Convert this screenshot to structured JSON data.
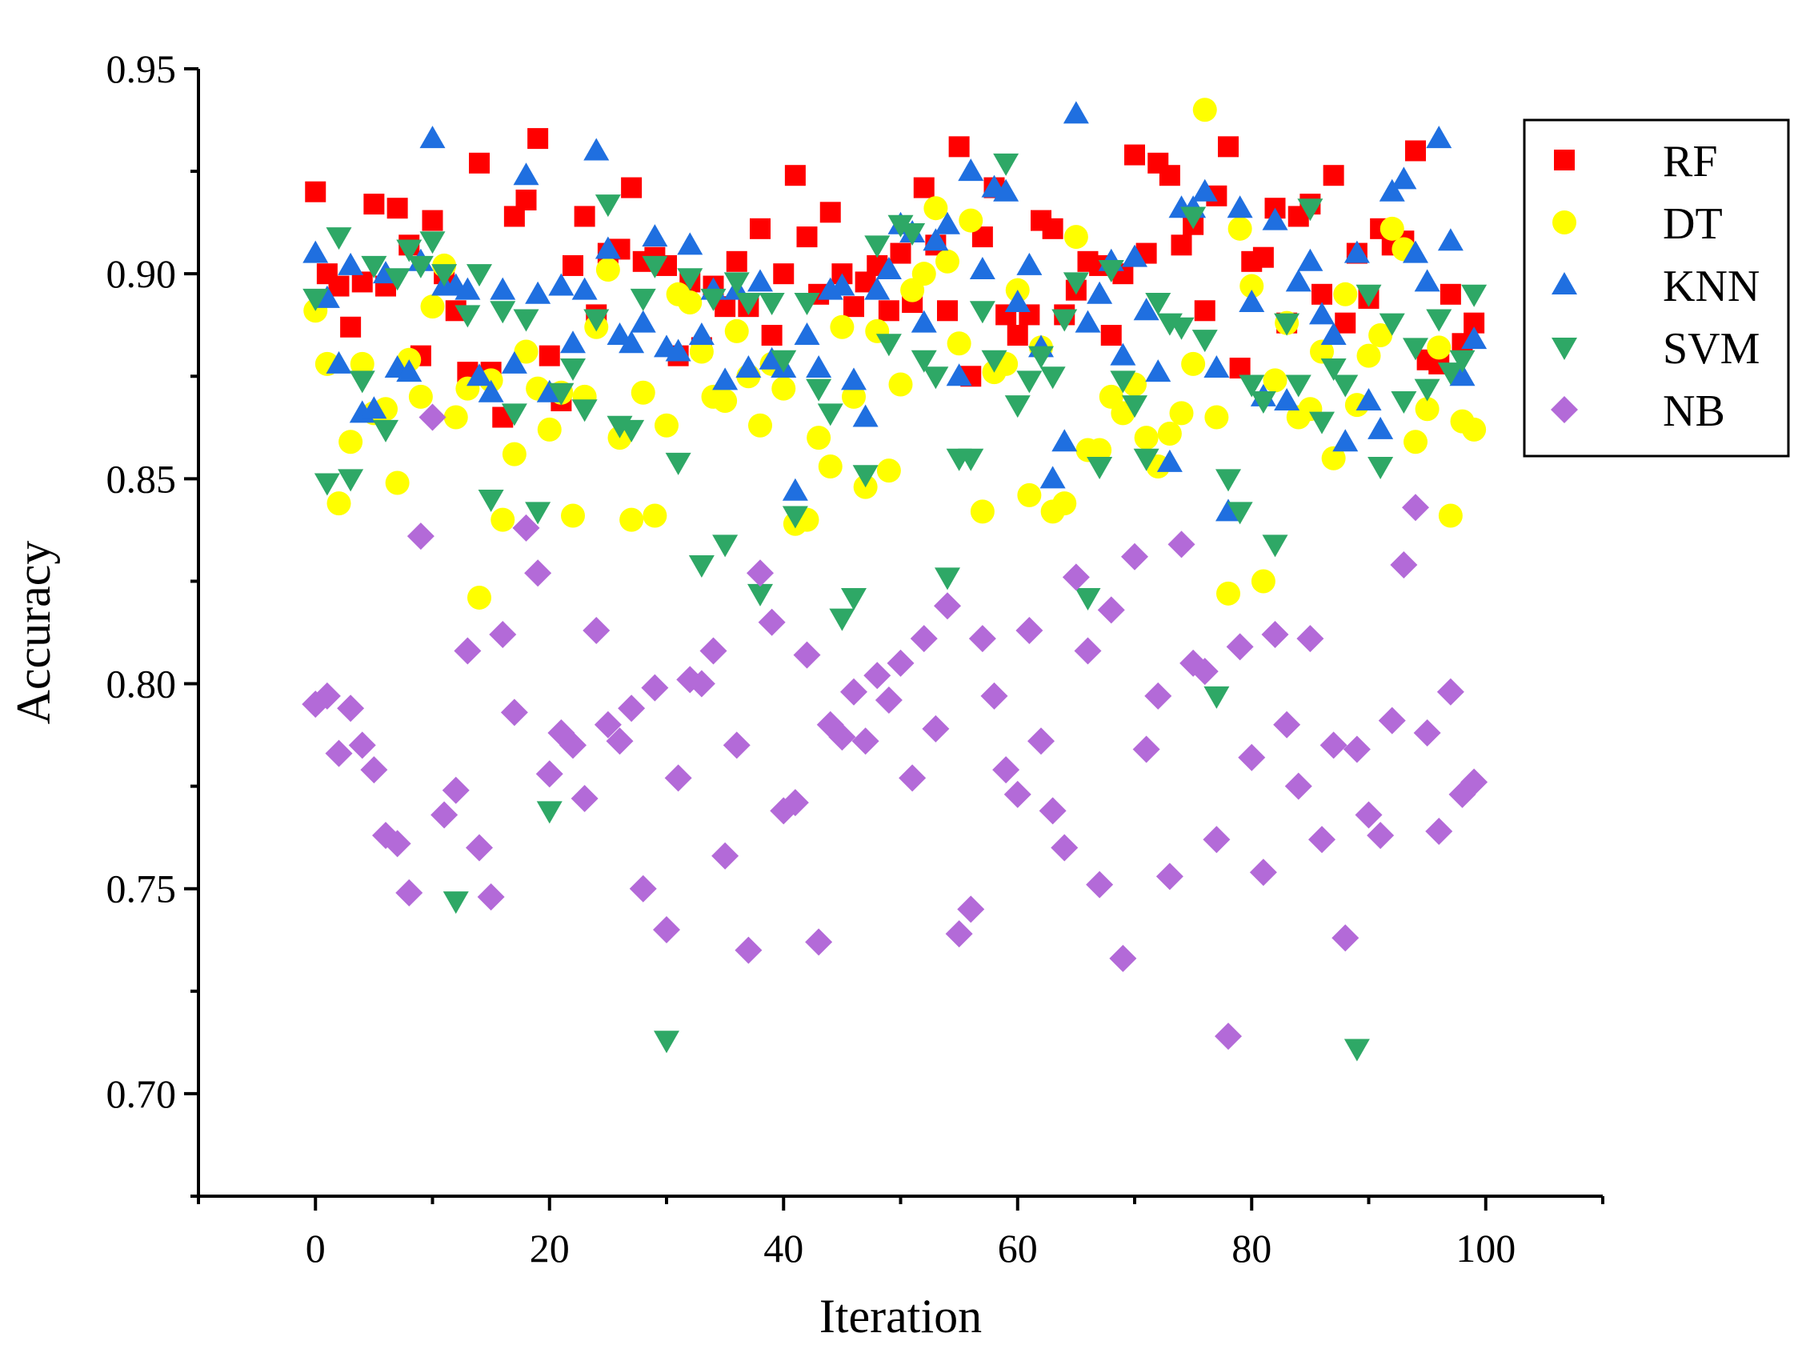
{
  "chart_data": {
    "type": "scatter",
    "title": "",
    "xlabel": "Iteration",
    "ylabel": "Accuracy",
    "xlim": [
      -10,
      110
    ],
    "ylim": [
      0.675,
      0.95
    ],
    "xticks": [
      0,
      20,
      40,
      60,
      80,
      100
    ],
    "xtick_labels": [
      "0",
      "20",
      "40",
      "60",
      "80",
      "100"
    ],
    "yticks": [
      0.7,
      0.75,
      0.8,
      0.85,
      0.9,
      0.95
    ],
    "ytick_labels": [
      "0.70",
      "0.75",
      "0.80",
      "0.85",
      "0.90",
      "0.95"
    ],
    "grid": false,
    "legend_position": "top-right",
    "series": [
      {
        "name": "RF",
        "color": "#ff0000",
        "marker": "square",
        "x": [
          0,
          1,
          2,
          3,
          4,
          5,
          6,
          7,
          8,
          9,
          10,
          11,
          12,
          13,
          14,
          15,
          16,
          17,
          18,
          19,
          20,
          21,
          22,
          23,
          24,
          25,
          26,
          27,
          28,
          29,
          30,
          31,
          32,
          33,
          34,
          35,
          36,
          37,
          38,
          39,
          40,
          41,
          42,
          43,
          44,
          45,
          46,
          47,
          48,
          49,
          50,
          51,
          52,
          53,
          54,
          55,
          56,
          57,
          58,
          59,
          60,
          61,
          62,
          63,
          64,
          65,
          66,
          67,
          68,
          69,
          70,
          71,
          72,
          73,
          74,
          75,
          76,
          77,
          78,
          79,
          80,
          81,
          82,
          83,
          84,
          85,
          86,
          87,
          88,
          89,
          90,
          91,
          92,
          93,
          94,
          95,
          96,
          97,
          98,
          99
        ],
        "y": [
          0.92,
          0.9,
          0.897,
          0.887,
          0.898,
          0.917,
          0.897,
          0.916,
          0.907,
          0.88,
          0.913,
          0.9,
          0.891,
          0.876,
          0.927,
          0.876,
          0.865,
          0.914,
          0.918,
          0.933,
          0.88,
          0.869,
          0.902,
          0.914,
          0.89,
          0.905,
          0.906,
          0.921,
          0.903,
          0.904,
          0.902,
          0.88,
          0.898,
          0.882,
          0.897,
          0.892,
          0.903,
          0.892,
          0.911,
          0.885,
          0.9,
          0.924,
          0.909,
          0.895,
          0.915,
          0.9,
          0.892,
          0.898,
          0.902,
          0.891,
          0.905,
          0.893,
          0.921,
          0.907,
          0.891,
          0.931,
          0.875,
          0.909,
          0.921,
          0.89,
          0.885,
          0.89,
          0.913,
          0.911,
          0.89,
          0.896,
          0.903,
          0.902,
          0.885,
          0.9,
          0.929,
          0.905,
          0.927,
          0.924,
          0.907,
          0.912,
          0.891,
          0.919,
          0.931,
          0.877,
          0.903,
          0.904,
          0.916,
          0.888,
          0.914,
          0.917,
          0.895,
          0.924,
          0.888,
          0.905,
          0.894,
          0.911,
          0.907,
          0.908,
          0.93,
          0.879,
          0.878,
          0.895,
          0.883,
          0.888
        ]
      },
      {
        "name": "DT",
        "color": "#ffff00",
        "marker": "circle",
        "x": [
          0,
          1,
          2,
          3,
          4,
          5,
          6,
          7,
          8,
          9,
          10,
          11,
          12,
          13,
          14,
          15,
          16,
          17,
          18,
          19,
          20,
          21,
          22,
          23,
          24,
          25,
          26,
          27,
          28,
          29,
          30,
          31,
          32,
          33,
          34,
          35,
          36,
          37,
          38,
          39,
          40,
          41,
          42,
          43,
          44,
          45,
          46,
          47,
          48,
          49,
          50,
          51,
          52,
          53,
          54,
          55,
          56,
          57,
          58,
          59,
          60,
          61,
          62,
          63,
          64,
          65,
          66,
          67,
          68,
          69,
          70,
          71,
          72,
          73,
          74,
          75,
          76,
          77,
          78,
          79,
          80,
          81,
          82,
          83,
          84,
          85,
          86,
          87,
          88,
          89,
          90,
          91,
          92,
          93,
          94,
          95,
          96,
          97,
          98,
          99
        ],
        "y": [
          0.891,
          0.878,
          0.844,
          0.859,
          0.878,
          0.866,
          0.867,
          0.849,
          0.879,
          0.87,
          0.892,
          0.902,
          0.865,
          0.872,
          0.821,
          0.874,
          0.84,
          0.856,
          0.881,
          0.872,
          0.862,
          0.871,
          0.841,
          0.87,
          0.887,
          0.901,
          0.86,
          0.84,
          0.871,
          0.841,
          0.863,
          0.895,
          0.893,
          0.881,
          0.87,
          0.869,
          0.886,
          0.875,
          0.863,
          0.878,
          0.872,
          0.839,
          0.84,
          0.86,
          0.853,
          0.887,
          0.87,
          0.848,
          0.886,
          0.852,
          0.873,
          0.896,
          0.9,
          0.916,
          0.903,
          0.883,
          0.913,
          0.842,
          0.876,
          0.878,
          0.896,
          0.846,
          0.882,
          0.842,
          0.844,
          0.909,
          0.857,
          0.857,
          0.87,
          0.866,
          0.873,
          0.86,
          0.853,
          0.861,
          0.866,
          0.878,
          0.94,
          0.865,
          0.822,
          0.911,
          0.897,
          0.825,
          0.874,
          0.888,
          0.865,
          0.867,
          0.881,
          0.855,
          0.895,
          0.868,
          0.88,
          0.885,
          0.911,
          0.906,
          0.859,
          0.867,
          0.882,
          0.841,
          0.864,
          0.862
        ]
      },
      {
        "name": "KNN",
        "color": "#1f6fe0",
        "marker": "triangle-up",
        "x": [
          0,
          1,
          2,
          3,
          4,
          5,
          6,
          7,
          8,
          9,
          10,
          11,
          12,
          13,
          14,
          15,
          16,
          17,
          18,
          19,
          20,
          21,
          22,
          23,
          24,
          25,
          26,
          27,
          28,
          29,
          30,
          31,
          32,
          33,
          34,
          35,
          36,
          37,
          38,
          39,
          40,
          41,
          42,
          43,
          44,
          45,
          46,
          47,
          48,
          49,
          50,
          51,
          52,
          53,
          54,
          55,
          56,
          57,
          58,
          59,
          60,
          61,
          62,
          63,
          64,
          65,
          66,
          67,
          68,
          69,
          70,
          71,
          72,
          73,
          74,
          75,
          76,
          77,
          78,
          79,
          80,
          81,
          82,
          83,
          84,
          85,
          86,
          87,
          88,
          89,
          90,
          91,
          92,
          93,
          94,
          95,
          96,
          97,
          98,
          99
        ],
        "y": [
          0.905,
          0.894,
          0.878,
          0.902,
          0.866,
          0.867,
          0.9,
          0.877,
          0.876,
          0.903,
          0.933,
          0.897,
          0.897,
          0.896,
          0.875,
          0.871,
          0.896,
          0.878,
          0.924,
          0.895,
          0.871,
          0.897,
          0.883,
          0.896,
          0.93,
          0.906,
          0.885,
          0.883,
          0.888,
          0.909,
          0.882,
          0.881,
          0.907,
          0.885,
          0.896,
          0.874,
          0.896,
          0.877,
          0.898,
          0.879,
          0.877,
          0.847,
          0.885,
          0.877,
          0.896,
          0.897,
          0.874,
          0.865,
          0.896,
          0.901,
          0.912,
          0.91,
          0.888,
          0.908,
          0.912,
          0.875,
          0.925,
          0.901,
          0.921,
          0.92,
          0.893,
          0.902,
          0.882,
          0.85,
          0.859,
          0.939,
          0.888,
          0.895,
          0.903,
          0.88,
          0.904,
          0.891,
          0.876,
          0.854,
          0.916,
          0.916,
          0.92,
          0.877,
          0.842,
          0.916,
          0.893,
          0.87,
          0.913,
          0.869,
          0.898,
          0.903,
          0.89,
          0.885,
          0.859,
          0.905,
          0.869,
          0.862,
          0.92,
          0.923,
          0.905,
          0.898,
          0.933,
          0.908,
          0.875,
          0.884
        ]
      },
      {
        "name": "SVM",
        "color": "#2ea866",
        "marker": "triangle-down",
        "x": [
          0,
          1,
          2,
          3,
          4,
          5,
          6,
          7,
          8,
          9,
          10,
          11,
          12,
          13,
          14,
          15,
          16,
          17,
          18,
          19,
          20,
          21,
          22,
          23,
          24,
          25,
          26,
          27,
          28,
          29,
          30,
          31,
          32,
          33,
          34,
          35,
          36,
          37,
          38,
          39,
          40,
          41,
          42,
          43,
          44,
          45,
          46,
          47,
          48,
          49,
          50,
          51,
          52,
          53,
          54,
          55,
          56,
          57,
          58,
          59,
          60,
          61,
          62,
          63,
          64,
          65,
          66,
          67,
          68,
          69,
          70,
          71,
          72,
          73,
          74,
          75,
          76,
          77,
          78,
          79,
          80,
          81,
          82,
          83,
          84,
          85,
          86,
          87,
          88,
          89,
          90,
          91,
          92,
          93,
          94,
          95,
          96,
          97,
          98,
          99
        ],
        "y": [
          0.894,
          0.849,
          0.909,
          0.85,
          0.874,
          0.902,
          0.862,
          0.899,
          0.906,
          0.902,
          0.908,
          0.9,
          0.747,
          0.89,
          0.9,
          0.845,
          0.891,
          0.866,
          0.889,
          0.842,
          0.769,
          0.871,
          0.877,
          0.867,
          0.889,
          0.917,
          0.863,
          0.862,
          0.894,
          0.902,
          0.713,
          0.854,
          0.899,
          0.829,
          0.894,
          0.834,
          0.898,
          0.893,
          0.822,
          0.893,
          0.879,
          0.841,
          0.893,
          0.872,
          0.866,
          0.816,
          0.821,
          0.851,
          0.907,
          0.883,
          0.912,
          0.91,
          0.879,
          0.875,
          0.826,
          0.855,
          0.855,
          0.891,
          0.879,
          0.927,
          0.868,
          0.874,
          0.88,
          0.875,
          0.889,
          0.898,
          0.821,
          0.853,
          0.901,
          0.874,
          0.868,
          0.855,
          0.893,
          0.888,
          0.887,
          0.914,
          0.884,
          0.797,
          0.85,
          0.842,
          0.873,
          0.869,
          0.834,
          0.888,
          0.873,
          0.916,
          0.864,
          0.877,
          0.873,
          0.711,
          0.895,
          0.853,
          0.888,
          0.869,
          0.882,
          0.872,
          0.889,
          0.876,
          0.879,
          0.895
        ]
      },
      {
        "name": "NB",
        "color": "#b36ad8",
        "marker": "diamond",
        "x": [
          0,
          1,
          2,
          3,
          4,
          5,
          6,
          7,
          8,
          9,
          10,
          11,
          12,
          13,
          14,
          15,
          16,
          17,
          18,
          19,
          20,
          21,
          22,
          23,
          24,
          25,
          26,
          27,
          28,
          29,
          30,
          31,
          32,
          33,
          34,
          35,
          36,
          37,
          38,
          39,
          40,
          41,
          42,
          43,
          44,
          45,
          46,
          47,
          48,
          49,
          50,
          51,
          52,
          53,
          54,
          55,
          56,
          57,
          58,
          59,
          60,
          61,
          62,
          63,
          64,
          65,
          66,
          67,
          68,
          69,
          70,
          71,
          72,
          73,
          74,
          75,
          76,
          77,
          78,
          79,
          80,
          81,
          82,
          83,
          84,
          85,
          86,
          87,
          88,
          89,
          90,
          91,
          92,
          93,
          94,
          95,
          96,
          97,
          98,
          99
        ],
        "y": [
          0.795,
          0.797,
          0.783,
          0.794,
          0.785,
          0.779,
          0.763,
          0.761,
          0.749,
          0.836,
          0.865,
          0.768,
          0.774,
          0.808,
          0.76,
          0.748,
          0.812,
          0.793,
          0.838,
          0.827,
          0.778,
          0.788,
          0.785,
          0.772,
          0.813,
          0.79,
          0.786,
          0.794,
          0.75,
          0.799,
          0.74,
          0.777,
          0.801,
          0.8,
          0.808,
          0.758,
          0.785,
          0.735,
          0.827,
          0.815,
          0.769,
          0.771,
          0.807,
          0.737,
          0.79,
          0.787,
          0.798,
          0.786,
          0.802,
          0.796,
          0.805,
          0.777,
          0.811,
          0.789,
          0.819,
          0.739,
          0.745,
          0.811,
          0.797,
          0.779,
          0.773,
          0.813,
          0.786,
          0.769,
          0.76,
          0.826,
          0.808,
          0.751,
          0.818,
          0.733,
          0.831,
          0.784,
          0.797,
          0.753,
          0.834,
          0.805,
          0.803,
          0.762,
          0.714,
          0.809,
          0.782,
          0.754,
          0.812,
          0.79,
          0.775,
          0.811,
          0.762,
          0.785,
          0.738,
          0.784,
          0.768,
          0.763,
          0.791,
          0.829,
          0.843,
          0.788,
          0.764,
          0.798,
          0.773,
          0.776
        ]
      }
    ]
  }
}
